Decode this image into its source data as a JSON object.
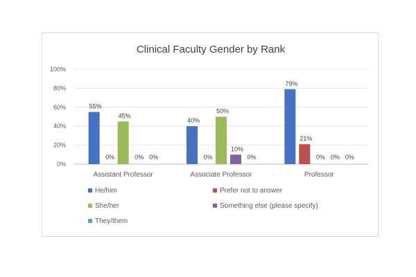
{
  "chart_data": {
    "type": "bar",
    "title": "Clinical Faculty Gender by Rank",
    "xlabel": "",
    "ylabel": "",
    "ylim": [
      0,
      100
    ],
    "yticks": [
      "0%",
      "20%",
      "40%",
      "60%",
      "80%",
      "100%"
    ],
    "grid": true,
    "legend_position": "bottom",
    "categories": [
      "Assistant Professor",
      "Associate Professor",
      "Professor"
    ],
    "series": [
      {
        "name": "He/him",
        "color": "#4472c4",
        "values": [
          55,
          40,
          79
        ],
        "labels": [
          "55%",
          "40%",
          "79%"
        ]
      },
      {
        "name": "Prefer not to answer",
        "color": "#c0504d",
        "values": [
          0,
          0,
          21
        ],
        "labels": [
          "0%",
          "0%",
          "21%"
        ]
      },
      {
        "name": "She/her",
        "color": "#9bbb59",
        "values": [
          45,
          50,
          0
        ],
        "labels": [
          "45%",
          "50%",
          "0%"
        ]
      },
      {
        "name": "Something else (please specify)",
        "color": "#8064a2",
        "values": [
          0,
          10,
          0
        ],
        "labels": [
          "0%",
          "10%",
          "0%"
        ]
      },
      {
        "name": "They/them",
        "color": "#4bacc6",
        "values": [
          0,
          0,
          0
        ],
        "labels": [
          "0%",
          "0%",
          "0%"
        ]
      }
    ]
  }
}
